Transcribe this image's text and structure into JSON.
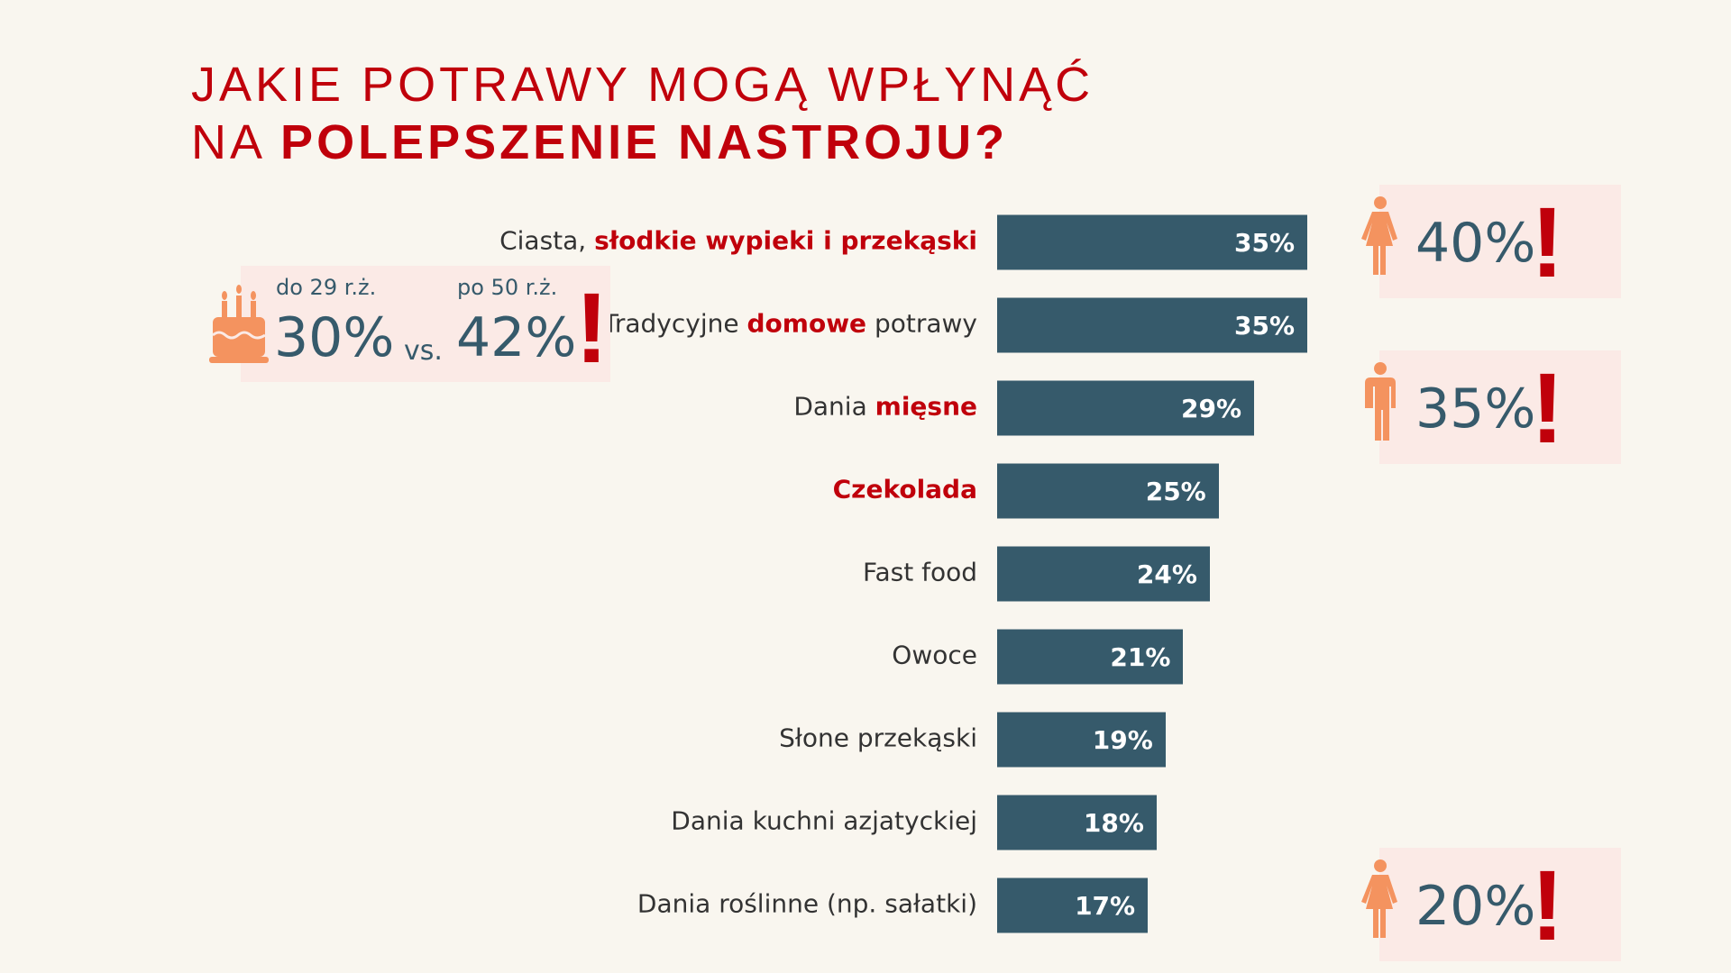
{
  "title": {
    "line1": "JAKIE POTRAWY MOGĄ WPŁYNĄĆ",
    "line2_prefix": "NA ",
    "line2_bold": "POLEPSZENIE NASTROJU?"
  },
  "colors": {
    "bar": "#365a6b",
    "accent": "#c0000b",
    "icon": "#f4935f",
    "callout_bg": "#fbeae6",
    "background": "#f9f6ef"
  },
  "chart_data": {
    "type": "bar",
    "orientation": "horizontal",
    "categories": [
      {
        "parts": [
          "Ciasta, ",
          "słodkie wypieki i przekąski"
        ],
        "highlight": [
          false,
          true
        ]
      },
      {
        "parts": [
          "Tradycyjne ",
          "domowe",
          " potrawy"
        ],
        "highlight": [
          false,
          true,
          false
        ]
      },
      {
        "parts": [
          "Dania ",
          "mięsne"
        ],
        "highlight": [
          false,
          true
        ]
      },
      {
        "parts": [
          "Czekolada"
        ],
        "highlight": [
          true
        ]
      },
      {
        "parts": [
          "Fast food"
        ],
        "highlight": [
          false
        ]
      },
      {
        "parts": [
          "Owoce"
        ],
        "highlight": [
          false
        ]
      },
      {
        "parts": [
          "Słone przekąski"
        ],
        "highlight": [
          false
        ]
      },
      {
        "parts": [
          "Dania kuchni azjatyckiej"
        ],
        "highlight": [
          false
        ]
      },
      {
        "parts": [
          "Dania roślinne (np. sałatki)"
        ],
        "highlight": [
          false
        ]
      }
    ],
    "values": [
      35,
      35,
      29,
      25,
      24,
      21,
      19,
      18,
      17
    ],
    "value_labels": [
      "35%",
      "35%",
      "29%",
      "25%",
      "24%",
      "21%",
      "19%",
      "18%",
      "17%"
    ],
    "unit": "%",
    "grid": false
  },
  "age_callout": {
    "icon": "cake-icon",
    "young_label": "do 29 r.ż.",
    "young_value": "30%",
    "vs": "vs.",
    "old_label": "po 50 r.ż.",
    "old_value": "42%",
    "mark": "!"
  },
  "gender_callouts": [
    {
      "icon": "woman-icon",
      "value": "40%",
      "mark": "!",
      "row": 0
    },
    {
      "icon": "man-icon",
      "value": "35%",
      "mark": "!",
      "row": 2
    },
    {
      "icon": "woman-icon",
      "value": "20%",
      "mark": "!",
      "row": 8
    }
  ]
}
